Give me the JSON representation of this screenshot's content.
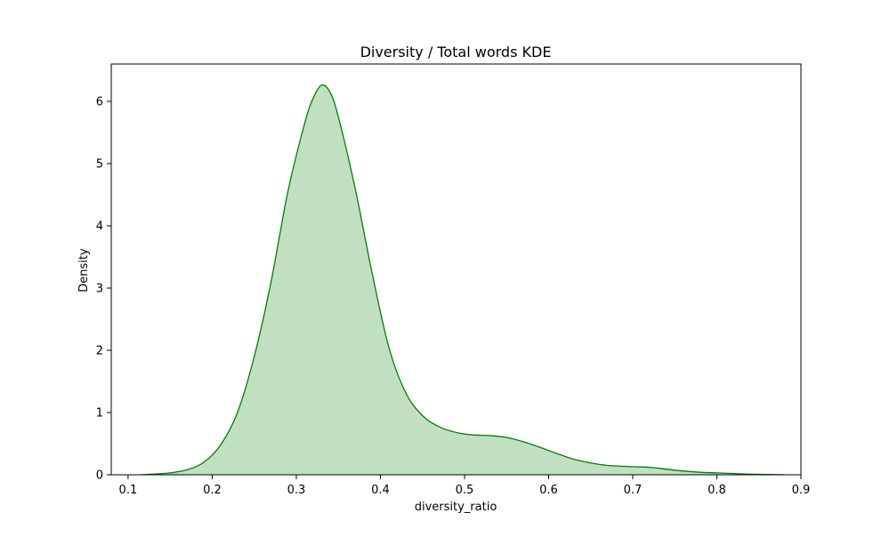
{
  "chart_data": {
    "type": "area",
    "title": "Diversity / Total words KDE",
    "xlabel": "diversity_ratio",
    "ylabel": "Density",
    "xlim": [
      0.08,
      0.9
    ],
    "ylim": [
      0,
      6.6
    ],
    "xticks": [
      0.1,
      0.2,
      0.3,
      0.4,
      0.5,
      0.6,
      0.7,
      0.8,
      0.9
    ],
    "xtick_labels": [
      "0.1",
      "0.2",
      "0.3",
      "0.4",
      "0.5",
      "0.6",
      "0.7",
      "0.8",
      "0.9"
    ],
    "yticks": [
      0,
      1,
      2,
      3,
      4,
      5,
      6
    ],
    "ytick_labels": [
      "0",
      "1",
      "2",
      "3",
      "4",
      "5",
      "6"
    ],
    "grid": false,
    "colors": {
      "line": "#008000",
      "fill": "#c1e0c1"
    },
    "series": [
      {
        "x": [
          0.115,
          0.13,
          0.15,
          0.17,
          0.19,
          0.21,
          0.23,
          0.25,
          0.27,
          0.29,
          0.31,
          0.32,
          0.33,
          0.34,
          0.35,
          0.37,
          0.39,
          0.41,
          0.43,
          0.45,
          0.47,
          0.49,
          0.51,
          0.53,
          0.55,
          0.57,
          0.59,
          0.61,
          0.63,
          0.65,
          0.67,
          0.7,
          0.72,
          0.74,
          0.76,
          0.78,
          0.8,
          0.82,
          0.84,
          0.86,
          0.88
        ],
        "y": [
          0.0,
          0.01,
          0.03,
          0.08,
          0.2,
          0.48,
          1.0,
          1.9,
          3.1,
          4.55,
          5.65,
          6.05,
          6.26,
          6.15,
          5.75,
          4.6,
          3.25,
          2.05,
          1.32,
          0.95,
          0.77,
          0.68,
          0.64,
          0.63,
          0.6,
          0.53,
          0.44,
          0.34,
          0.25,
          0.19,
          0.15,
          0.13,
          0.12,
          0.09,
          0.06,
          0.04,
          0.03,
          0.02,
          0.01,
          0.005,
          0.0
        ]
      }
    ]
  }
}
